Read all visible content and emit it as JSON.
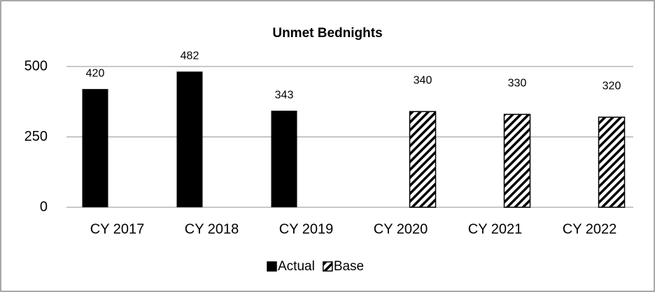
{
  "chart_data": {
    "type": "bar",
    "title": "Unmet Bednights",
    "categories": [
      "CY 2017",
      "CY 2018",
      "CY 2019",
      "CY 2020",
      "CY 2021",
      "CY 2022"
    ],
    "series": [
      {
        "name": "Actual",
        "color": "#000000",
        "fill_pattern": "solid",
        "values": [
          420,
          482,
          343,
          null,
          null,
          null
        ]
      },
      {
        "name": "Base",
        "color": "#000000",
        "fill_pattern": "diagonal-hatch",
        "values": [
          null,
          null,
          null,
          340,
          330,
          320
        ]
      }
    ],
    "ylim": [
      0,
      500
    ],
    "yticks": [
      0,
      250,
      500
    ],
    "grid": true,
    "legend": "bottom"
  }
}
